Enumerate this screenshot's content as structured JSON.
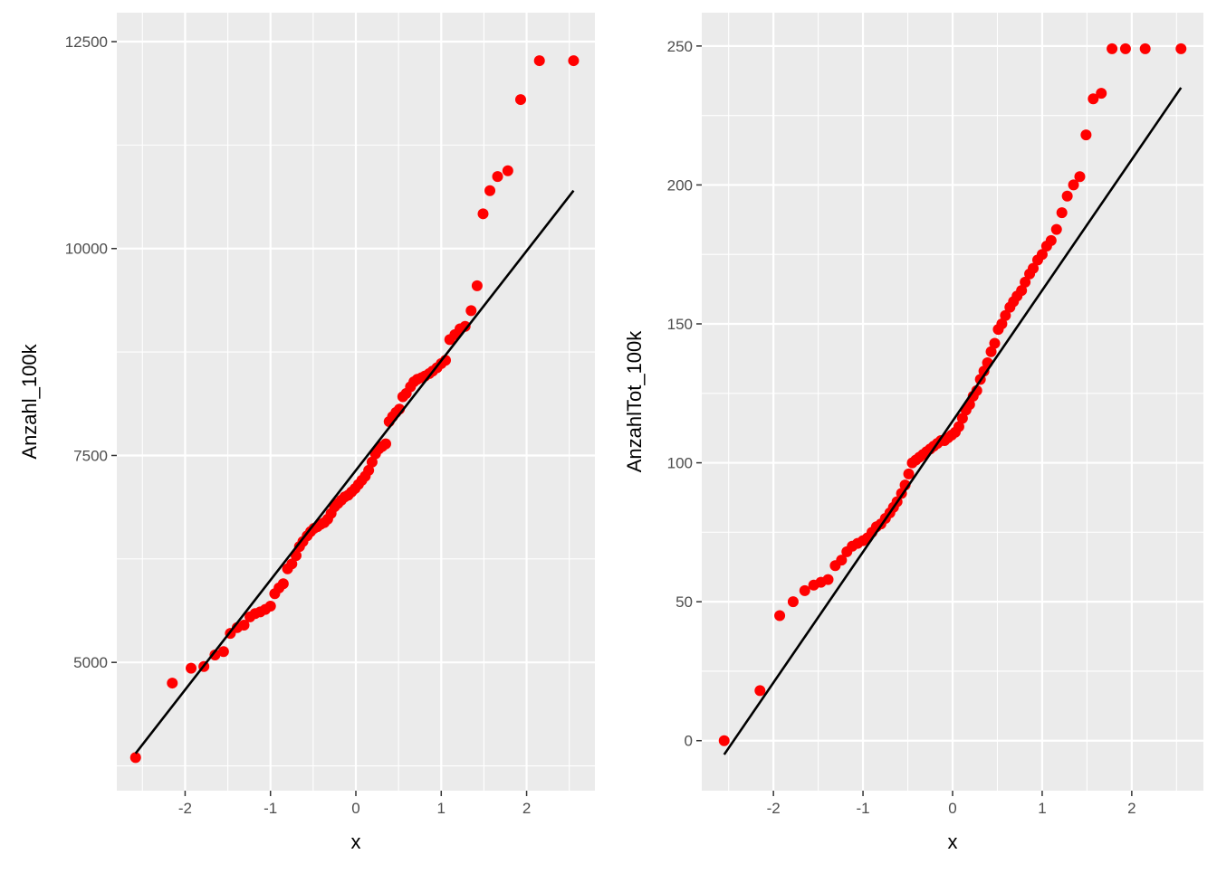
{
  "colors": {
    "panel_bg": "#ebebeb",
    "grid": "#ffffff",
    "points": "#ff0000",
    "line": "#000000",
    "tick_text": "#4d4d4d"
  },
  "chart_data": [
    {
      "type": "scatter",
      "subtype": "qq-plot",
      "title": "",
      "xlabel": "x",
      "ylabel": "Anzahl_100k",
      "xlim": [
        -2.8,
        2.8
      ],
      "ylim": [
        3450,
        12850
      ],
      "x_ticks": [
        -2,
        -1,
        0,
        1,
        2
      ],
      "x_tick_labels": [
        "-2",
        "-1",
        "0",
        "1",
        "2"
      ],
      "y_ticks": [
        5000,
        7500,
        10000,
        12500
      ],
      "y_tick_labels": [
        "5000",
        "7500",
        "10000",
        "12500"
      ],
      "grid": true,
      "reference_line": {
        "x": [
          -2.58,
          2.55
        ],
        "y": [
          3900,
          10700
        ]
      },
      "points": {
        "x": [
          -2.58,
          -2.15,
          -1.93,
          -1.78,
          -1.65,
          -1.55,
          -1.47,
          -1.39,
          -1.31,
          -1.24,
          -1.18,
          -1.12,
          -1.06,
          -1.0,
          -0.95,
          -0.9,
          -0.85,
          -0.8,
          -0.75,
          -0.7,
          -0.66,
          -0.62,
          -0.57,
          -0.53,
          -0.49,
          -0.45,
          -0.41,
          -0.37,
          -0.33,
          -0.29,
          -0.25,
          -0.21,
          -0.17,
          -0.13,
          -0.09,
          -0.05,
          -0.01,
          0.03,
          0.07,
          0.11,
          0.15,
          0.19,
          0.23,
          0.27,
          0.31,
          0.35,
          0.39,
          0.43,
          0.47,
          0.51,
          0.55,
          0.59,
          0.64,
          0.68,
          0.72,
          0.77,
          0.81,
          0.86,
          0.9,
          0.95,
          1.0,
          1.05,
          1.1,
          1.16,
          1.22,
          1.28,
          1.35,
          1.42,
          1.49,
          1.57,
          1.66,
          1.78,
          1.93,
          2.15,
          2.55
        ],
        "y": [
          3850,
          4750,
          4930,
          4950,
          5090,
          5130,
          5350,
          5420,
          5450,
          5550,
          5590,
          5610,
          5640,
          5680,
          5830,
          5900,
          5950,
          6130,
          6190,
          6290,
          6400,
          6460,
          6530,
          6580,
          6620,
          6640,
          6670,
          6690,
          6730,
          6800,
          6880,
          6920,
          6960,
          7000,
          7020,
          7060,
          7100,
          7150,
          7200,
          7250,
          7320,
          7420,
          7520,
          7580,
          7610,
          7640,
          7910,
          7970,
          8020,
          8060,
          8210,
          8250,
          8330,
          8390,
          8420,
          8440,
          8460,
          8490,
          8520,
          8560,
          8610,
          8650,
          8900,
          8960,
          9030,
          9060,
          9250,
          9550,
          10420,
          10700,
          10870,
          10940,
          11800,
          12270,
          12270
        ]
      }
    },
    {
      "type": "scatter",
      "subtype": "qq-plot",
      "title": "",
      "xlabel": "x",
      "ylabel": "AnzahlTot_100k",
      "xlim": [
        -2.8,
        2.8
      ],
      "ylim": [
        -18,
        262
      ],
      "x_ticks": [
        -2,
        -1,
        0,
        1,
        2
      ],
      "x_tick_labels": [
        "-2",
        "-1",
        "0",
        "1",
        "2"
      ],
      "y_ticks": [
        0,
        50,
        100,
        150,
        200,
        250
      ],
      "y_tick_labels": [
        "0",
        "50",
        "100",
        "150",
        "200",
        "250"
      ],
      "grid": true,
      "reference_line": {
        "x": [
          -2.55,
          2.55
        ],
        "y": [
          -5,
          235
        ]
      },
      "points": {
        "x": [
          -2.55,
          -2.15,
          -1.93,
          -1.78,
          -1.65,
          -1.55,
          -1.47,
          -1.39,
          -1.31,
          -1.24,
          -1.18,
          -1.12,
          -1.06,
          -1.0,
          -0.95,
          -0.9,
          -0.85,
          -0.8,
          -0.75,
          -0.7,
          -0.66,
          -0.62,
          -0.57,
          -0.53,
          -0.49,
          -0.45,
          -0.41,
          -0.37,
          -0.33,
          -0.29,
          -0.25,
          -0.21,
          -0.17,
          -0.13,
          -0.09,
          -0.05,
          -0.01,
          0.03,
          0.07,
          0.11,
          0.15,
          0.19,
          0.23,
          0.27,
          0.31,
          0.35,
          0.39,
          0.43,
          0.47,
          0.51,
          0.55,
          0.59,
          0.64,
          0.68,
          0.72,
          0.77,
          0.81,
          0.86,
          0.9,
          0.95,
          1.0,
          1.05,
          1.1,
          1.16,
          1.22,
          1.28,
          1.35,
          1.42,
          1.49,
          1.57,
          1.66,
          1.78,
          1.93,
          2.15,
          2.55
        ],
        "y": [
          0,
          18,
          45,
          50,
          54,
          56,
          57,
          58,
          63,
          65,
          68,
          70,
          71,
          72,
          73,
          75,
          77,
          78,
          80,
          82,
          84,
          86,
          89,
          92,
          96,
          100,
          101,
          102,
          103,
          104,
          105,
          106,
          107,
          108,
          108,
          109,
          110,
          111,
          113,
          116,
          119,
          121,
          124,
          126,
          130,
          133,
          136,
          140,
          143,
          148,
          150,
          153,
          156,
          158,
          160,
          162,
          165,
          168,
          170,
          173,
          175,
          178,
          180,
          184,
          190,
          196,
          200,
          203,
          218,
          231,
          233,
          249,
          249,
          249,
          249
        ]
      }
    }
  ]
}
